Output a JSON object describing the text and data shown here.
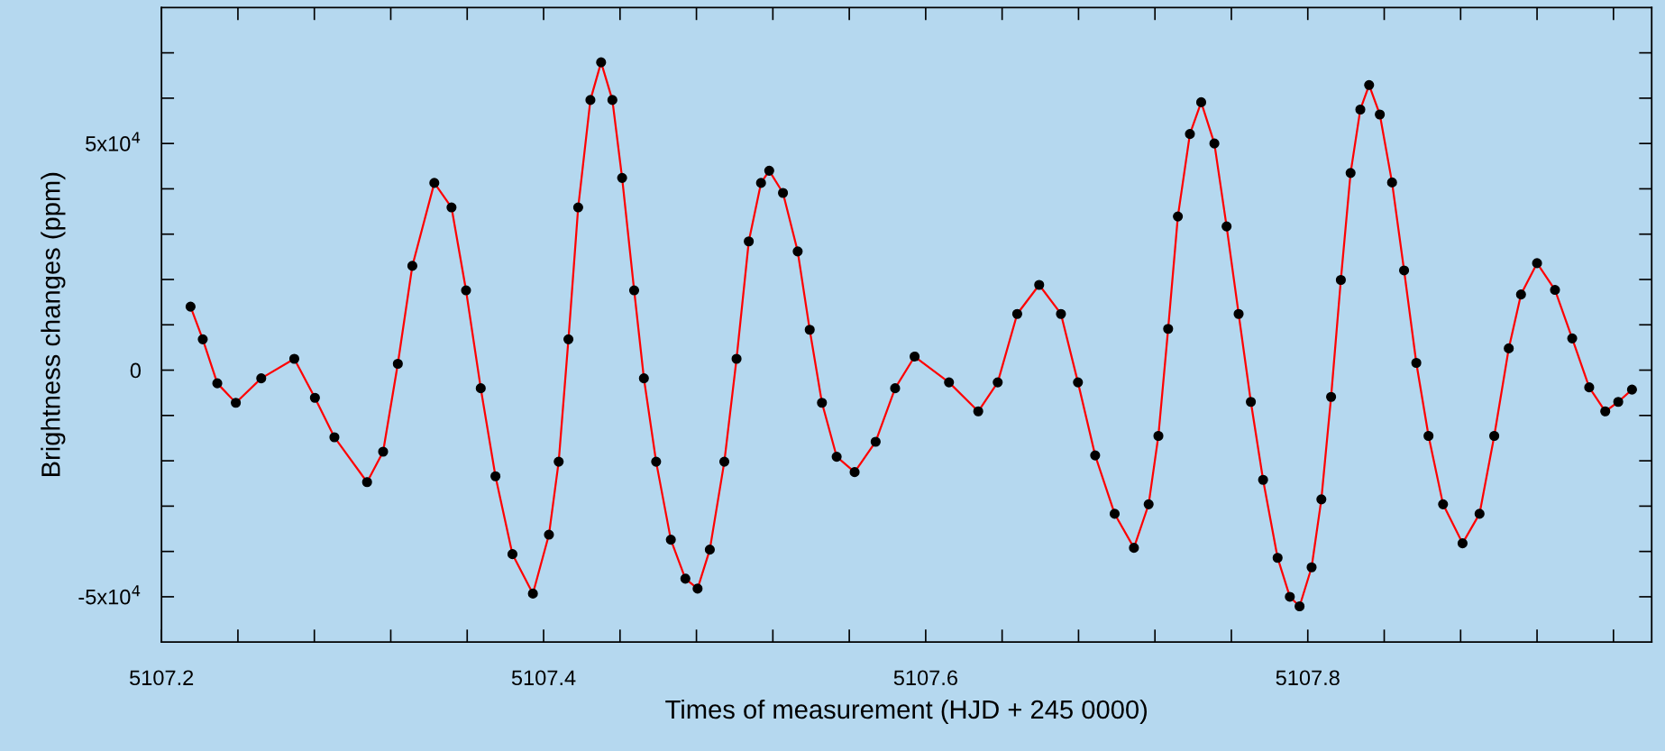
{
  "chart_data": {
    "type": "line",
    "xlabel": "Times of measurement (HJD + 245 0000)",
    "ylabel": "Brightness changes (ppm)",
    "xlim": [
      5107.2,
      5107.98
    ],
    "xticks": [
      5107.2,
      {
        "value": 5107.24,
        "label": null
      },
      {
        "value": 5107.28,
        "label": null
      },
      {
        "value": 5107.32,
        "label": null
      },
      {
        "value": 5107.36,
        "label": null
      },
      5107.4,
      {
        "value": 5107.44,
        "label": null
      },
      {
        "value": 5107.48,
        "label": null
      },
      {
        "value": 5107.52,
        "label": null
      },
      {
        "value": 5107.56,
        "label": null
      },
      5107.6,
      {
        "value": 5107.64,
        "label": null
      },
      {
        "value": 5107.68,
        "label": null
      },
      {
        "value": 5107.72,
        "label": null
      },
      {
        "value": 5107.76,
        "label": null
      },
      5107.8,
      {
        "value": 5107.84,
        "label": null
      },
      {
        "value": 5107.88,
        "label": null
      },
      {
        "value": 5107.92,
        "label": null
      },
      {
        "value": 5107.96,
        "label": null
      }
    ],
    "ylim": [
      -60000,
      80000
    ],
    "yticks": [
      {
        "value": -50000,
        "label": "-5x10$^{4}$"
      },
      {
        "value": -40000,
        "label": null
      },
      {
        "value": -30000,
        "label": null
      },
      {
        "value": -20000,
        "label": null
      },
      {
        "value": -10000,
        "label": null
      },
      0,
      {
        "value": 10000,
        "label": null
      },
      {
        "value": 20000,
        "label": null
      },
      {
        "value": 30000,
        "label": null
      },
      {
        "value": 40000,
        "label": null
      },
      {
        "value": 50000,
        "label": "5x10$^{4}$"
      },
      {
        "value": 60000,
        "label": null
      },
      {
        "value": 70000,
        "label": null
      }
    ],
    "grid": false,
    "marker": "circle",
    "line_style": "solid",
    "series": [
      {
        "color": "#000000",
        "x": [
          5107.2152,
          5107.2216,
          5107.2292,
          5107.2389,
          5107.2522,
          5107.2695,
          5107.2803,
          5107.2905,
          5107.3076,
          5107.316,
          5107.3237,
          5107.3313,
          5107.3428,
          5107.3518,
          5107.3594,
          5107.3671,
          5107.3748,
          5107.3837,
          5107.3944,
          5107.4028,
          5107.4079,
          5107.413,
          5107.4181,
          5107.4245,
          5107.4301,
          5107.436,
          5107.4411,
          5107.4474,
          5107.4525,
          5107.4589,
          5107.4666,
          5107.4742,
          5107.4806,
          5107.487,
          5107.4946,
          5107.501,
          5107.5074,
          5107.5138,
          5107.5181,
          5107.5253,
          5107.533,
          5107.5393,
          5107.5457,
          5107.5534,
          5107.5628,
          5107.5738,
          5107.584,
          5107.5942,
          5107.6122,
          5107.6275,
          5107.6377,
          5107.6479,
          5107.6594,
          5107.6708,
          5107.6797,
          5107.6887,
          5107.6989,
          5107.709,
          5107.7167,
          5107.7218,
          5107.7269,
          5107.732,
          5107.7383,
          5107.7442,
          5107.7511,
          5107.7575,
          5107.7638,
          5107.7702,
          5107.7766,
          5107.7842,
          5107.7906,
          5107.7957,
          5107.802,
          5107.8071,
          5107.8122,
          5107.8173,
          5107.8224,
          5107.8275,
          5107.8321,
          5107.8377,
          5107.8441,
          5107.8504,
          5107.8568,
          5107.8632,
          5107.8708,
          5107.881,
          5107.8899,
          5107.8976,
          5107.9052,
          5107.9116,
          5107.92,
          5107.9294,
          5107.9384,
          5107.9473,
          5107.9557,
          5107.9625,
          5107.9697
        ],
        "values": [
          14000,
          6800,
          -2900,
          -7200,
          -1800,
          2500,
          -6100,
          -14800,
          -24700,
          -18000,
          1400,
          23000,
          41300,
          35900,
          17600,
          -4000,
          -23400,
          -40600,
          -49300,
          -36300,
          -20200,
          6800,
          35900,
          59600,
          67900,
          59600,
          42400,
          17600,
          -1800,
          -20200,
          -37400,
          -46000,
          -48200,
          -39600,
          -20200,
          2500,
          28400,
          41300,
          44000,
          39100,
          26200,
          8900,
          -7200,
          -19100,
          -22500,
          -15800,
          -4000,
          3000,
          -2700,
          -9100,
          -2700,
          12400,
          18800,
          12400,
          -2700,
          -18800,
          -31700,
          -39200,
          -29600,
          -14500,
          9100,
          33900,
          52100,
          59100,
          50000,
          31700,
          12400,
          -7000,
          -24200,
          -41400,
          -50000,
          -52100,
          -43500,
          -28500,
          -5900,
          19900,
          43500,
          57500,
          62900,
          56400,
          41400,
          22000,
          1600,
          -14500,
          -29600,
          -38200,
          -31700,
          -14500,
          4800,
          16700,
          23600,
          17700,
          7000,
          -3800,
          -9100,
          -7000,
          -4300
        ]
      }
    ]
  }
}
